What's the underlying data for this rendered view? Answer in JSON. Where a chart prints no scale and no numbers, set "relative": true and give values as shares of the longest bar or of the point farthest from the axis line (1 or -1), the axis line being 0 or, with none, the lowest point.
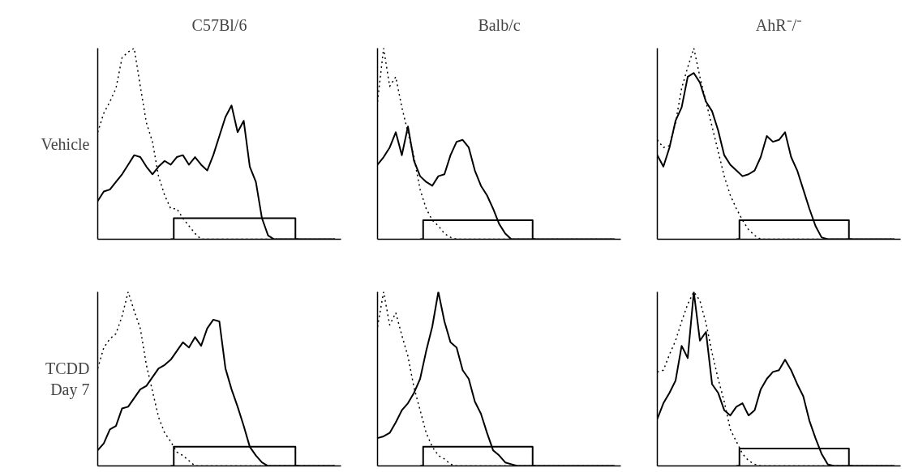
{
  "chart_data": [
    {
      "type": "line",
      "title": "C57Bl/6",
      "ylabel": "Vehicle",
      "relative": true,
      "categories": [
        null,
        null,
        null,
        null,
        null,
        null,
        null,
        null,
        null,
        null,
        null,
        null,
        null,
        null,
        null,
        null,
        null,
        null,
        null,
        null,
        null,
        null,
        null,
        null,
        null,
        null,
        null,
        null,
        null,
        null,
        null,
        null,
        null,
        null,
        null,
        null,
        null,
        null,
        null,
        null
      ],
      "series": [
        {
          "color": "#000000",
          "line_style": "dotted",
          "values": [
            0.56,
            0.66,
            0.72,
            0.79,
            0.95,
            0.98,
            1,
            0.8,
            0.61,
            0.51,
            0.33,
            0.23,
            0.16,
            0.16,
            0.11,
            0.07,
            0.03,
            0,
            0,
            0,
            0,
            0,
            0,
            0,
            0,
            0,
            0,
            0,
            0,
            0,
            0,
            0,
            0,
            0,
            0,
            0,
            0,
            0,
            0,
            0
          ]
        },
        {
          "color": "#000000",
          "line_style": "solid",
          "values": [
            0.2,
            0.25,
            0.26,
            0.3,
            0.34,
            0.39,
            0.44,
            0.43,
            0.38,
            0.34,
            0.38,
            0.41,
            0.39,
            0.43,
            0.44,
            0.39,
            0.43,
            0.39,
            0.36,
            0.44,
            0.54,
            0.64,
            0.7,
            0.56,
            0.62,
            0.38,
            0.3,
            0.11,
            0.02,
            0,
            0,
            0,
            0,
            0,
            0,
            0,
            0,
            0,
            0,
            0
          ]
        },
        {
          "type": "step",
          "color": "#000000",
          "line_style": "solid",
          "values": [
            null,
            null,
            null,
            null,
            null,
            null,
            null,
            null,
            null,
            null,
            null,
            null,
            0,
            0.11,
            0.11,
            0.11,
            0.11,
            0.11,
            0.11,
            0.11,
            0.11,
            0.11,
            0.11,
            0.11,
            0.11,
            0.11,
            0.11,
            0.11,
            0.11,
            0.11,
            0.11,
            0.11,
            0.11,
            0,
            null,
            null,
            null,
            null,
            null,
            null
          ]
        }
      ]
    },
    {
      "type": "line",
      "title": "Balb/c",
      "relative": true,
      "categories": [
        null,
        null,
        null,
        null,
        null,
        null,
        null,
        null,
        null,
        null,
        null,
        null,
        null,
        null,
        null,
        null,
        null,
        null,
        null,
        null,
        null,
        null,
        null,
        null,
        null,
        null,
        null,
        null,
        null,
        null,
        null,
        null,
        null,
        null,
        null,
        null,
        null,
        null,
        null,
        null
      ],
      "series": [
        {
          "color": "#000000",
          "line_style": "dotted",
          "values": [
            0.72,
            1,
            0.8,
            0.85,
            0.69,
            0.56,
            0.43,
            0.26,
            0.16,
            0.1,
            0.07,
            0.03,
            0.01,
            0,
            0,
            0,
            0,
            0,
            0,
            0,
            0,
            0,
            0,
            0,
            0,
            0,
            0,
            0,
            0,
            0,
            0,
            0,
            0,
            0,
            0,
            0,
            0,
            0,
            0,
            0
          ]
        },
        {
          "color": "#000000",
          "line_style": "solid",
          "values": [
            0.39,
            0.43,
            0.48,
            0.56,
            0.44,
            0.59,
            0.41,
            0.33,
            0.3,
            0.28,
            0.33,
            0.34,
            0.44,
            0.51,
            0.52,
            0.48,
            0.36,
            0.28,
            0.23,
            0.16,
            0.08,
            0.03,
            0,
            0,
            0,
            0,
            0,
            0,
            0,
            0,
            0,
            0,
            0,
            0,
            0,
            0,
            0,
            0,
            0,
            0
          ]
        },
        {
          "type": "step",
          "color": "#000000",
          "line_style": "solid",
          "values": [
            null,
            null,
            null,
            null,
            null,
            null,
            null,
            0,
            0.1,
            0.1,
            0.1,
            0.1,
            0.1,
            0.1,
            0.1,
            0.1,
            0.1,
            0.1,
            0.1,
            0.1,
            0.1,
            0.1,
            0.1,
            0.1,
            0.1,
            0.1,
            0,
            null,
            null,
            null,
            null,
            null,
            null,
            null,
            null,
            null,
            null,
            null,
            null,
            null
          ]
        }
      ]
    },
    {
      "type": "line",
      "title": "AhR⁻/⁻",
      "relative": true,
      "categories": [
        null,
        null,
        null,
        null,
        null,
        null,
        null,
        null,
        null,
        null,
        null,
        null,
        null,
        null,
        null,
        null,
        null,
        null,
        null,
        null,
        null,
        null,
        null,
        null,
        null,
        null,
        null,
        null,
        null,
        null,
        null,
        null,
        null,
        null,
        null,
        null,
        null,
        null,
        null,
        null
      ],
      "series": [
        {
          "color": "#000000",
          "line_style": "dotted",
          "values": [
            0.52,
            0.48,
            0.49,
            0.61,
            0.79,
            0.9,
            1,
            0.85,
            0.72,
            0.59,
            0.46,
            0.33,
            0.23,
            0.16,
            0.1,
            0.05,
            0.02,
            0,
            0,
            0,
            0,
            0,
            0,
            0,
            0,
            0,
            0,
            0,
            0,
            0,
            0,
            0,
            0,
            0,
            0,
            0,
            0,
            0,
            0,
            0
          ]
        },
        {
          "color": "#000000",
          "line_style": "solid",
          "values": [
            0.44,
            0.38,
            0.48,
            0.62,
            0.69,
            0.85,
            0.87,
            0.82,
            0.72,
            0.67,
            0.57,
            0.44,
            0.39,
            0.36,
            0.33,
            0.34,
            0.36,
            0.43,
            0.54,
            0.51,
            0.52,
            0.56,
            0.43,
            0.36,
            0.26,
            0.16,
            0.07,
            0.01,
            0,
            0,
            0,
            0,
            0,
            0,
            0,
            0,
            0,
            0,
            0,
            0
          ]
        },
        {
          "type": "step",
          "color": "#000000",
          "line_style": "solid",
          "values": [
            null,
            null,
            null,
            null,
            null,
            null,
            null,
            null,
            null,
            null,
            null,
            null,
            null,
            0,
            0.1,
            0.1,
            0.1,
            0.1,
            0.1,
            0.1,
            0.1,
            0.1,
            0.1,
            0.1,
            0.1,
            0.1,
            0.1,
            0.1,
            0.1,
            0.1,
            0.1,
            0.1,
            0,
            null,
            null,
            null,
            null,
            null,
            null,
            null
          ]
        }
      ]
    },
    {
      "type": "line",
      "ylabel": "TCDD\nDay 7",
      "relative": true,
      "categories": [
        null,
        null,
        null,
        null,
        null,
        null,
        null,
        null,
        null,
        null,
        null,
        null,
        null,
        null,
        null,
        null,
        null,
        null,
        null,
        null,
        null,
        null,
        null,
        null,
        null,
        null,
        null,
        null,
        null,
        null,
        null,
        null,
        null,
        null,
        null,
        null,
        null,
        null,
        null,
        null
      ],
      "series": [
        {
          "color": "#000000",
          "line_style": "dotted",
          "values": [
            0.56,
            0.68,
            0.73,
            0.76,
            0.86,
            1,
            0.89,
            0.79,
            0.58,
            0.43,
            0.28,
            0.19,
            0.14,
            0.08,
            0.06,
            0.03,
            0,
            0,
            0,
            0,
            0,
            0,
            0,
            0,
            0,
            0,
            0,
            0,
            0,
            0,
            0,
            0,
            0,
            0,
            0,
            0,
            0,
            0,
            0,
            0
          ]
        },
        {
          "color": "#000000",
          "line_style": "solid",
          "values": [
            0.09,
            0.13,
            0.21,
            0.23,
            0.33,
            0.34,
            0.39,
            0.44,
            0.46,
            0.51,
            0.56,
            0.58,
            0.61,
            0.66,
            0.71,
            0.68,
            0.74,
            0.69,
            0.79,
            0.84,
            0.83,
            0.56,
            0.44,
            0.34,
            0.23,
            0.11,
            0.06,
            0.02,
            0,
            0,
            0,
            0,
            0,
            0,
            0,
            0,
            0,
            0,
            0,
            0
          ]
        },
        {
          "type": "step",
          "color": "#000000",
          "line_style": "solid",
          "values": [
            null,
            null,
            null,
            null,
            null,
            null,
            null,
            null,
            null,
            null,
            null,
            null,
            0,
            0.11,
            0.11,
            0.11,
            0.11,
            0.11,
            0.11,
            0.11,
            0.11,
            0.11,
            0.11,
            0.11,
            0.11,
            0.11,
            0.11,
            0.11,
            0.11,
            0.11,
            0.11,
            0.11,
            0.11,
            0,
            null,
            null,
            null,
            null,
            null,
            null
          ]
        }
      ]
    },
    {
      "type": "line",
      "relative": true,
      "categories": [
        null,
        null,
        null,
        null,
        null,
        null,
        null,
        null,
        null,
        null,
        null,
        null,
        null,
        null,
        null,
        null,
        null,
        null,
        null,
        null,
        null,
        null,
        null,
        null,
        null,
        null,
        null,
        null,
        null,
        null,
        null,
        null,
        null,
        null,
        null,
        null,
        null,
        null,
        null,
        null
      ],
      "series": [
        {
          "color": "#000000",
          "line_style": "dotted",
          "values": [
            0.8,
            1,
            0.81,
            0.88,
            0.75,
            0.63,
            0.45,
            0.32,
            0.19,
            0.11,
            0.06,
            0.04,
            0.01,
            0,
            0,
            0,
            0,
            0,
            0,
            0,
            0,
            0,
            0,
            0,
            0,
            0,
            0,
            0,
            0,
            0,
            0,
            0,
            0,
            0,
            0,
            0,
            0,
            0,
            0,
            0
          ]
        },
        {
          "color": "#000000",
          "line_style": "solid",
          "values": [
            0.16,
            0.17,
            0.19,
            0.25,
            0.32,
            0.36,
            0.42,
            0.5,
            0.66,
            0.8,
            1,
            0.83,
            0.71,
            0.68,
            0.55,
            0.5,
            0.37,
            0.3,
            0.19,
            0.09,
            0.06,
            0.02,
            0.01,
            0,
            0,
            0,
            0,
            0,
            0,
            0,
            0,
            0,
            0,
            0,
            0,
            0,
            0,
            0,
            0,
            0
          ]
        },
        {
          "type": "step",
          "color": "#000000",
          "line_style": "solid",
          "values": [
            null,
            null,
            null,
            null,
            null,
            null,
            null,
            0,
            0.11,
            0.11,
            0.11,
            0.11,
            0.11,
            0.11,
            0.11,
            0.11,
            0.11,
            0.11,
            0.11,
            0.11,
            0.11,
            0.11,
            0.11,
            0.11,
            0.11,
            0.11,
            0,
            null,
            null,
            null,
            null,
            null,
            null,
            null,
            null,
            null,
            null,
            null,
            null,
            null
          ]
        }
      ]
    },
    {
      "type": "line",
      "relative": true,
      "categories": [
        null,
        null,
        null,
        null,
        null,
        null,
        null,
        null,
        null,
        null,
        null,
        null,
        null,
        null,
        null,
        null,
        null,
        null,
        null,
        null,
        null,
        null,
        null,
        null,
        null,
        null,
        null,
        null,
        null,
        null,
        null,
        null,
        null,
        null,
        null,
        null,
        null,
        null,
        null,
        null
      ],
      "series": [
        {
          "color": "#000000",
          "line_style": "dotted",
          "values": [
            0.54,
            0.55,
            0.64,
            0.72,
            0.83,
            0.93,
            1,
            0.95,
            0.82,
            0.65,
            0.5,
            0.37,
            0.21,
            0.14,
            0.07,
            0.03,
            0.01,
            0,
            0,
            0,
            0,
            0,
            0,
            0,
            0,
            0,
            0,
            0,
            0,
            0,
            0,
            0,
            0,
            0,
            0,
            0,
            0,
            0,
            0,
            0
          ]
        },
        {
          "color": "#000000",
          "line_style": "solid",
          "values": [
            0.27,
            0.36,
            0.42,
            0.49,
            0.69,
            0.62,
            1,
            0.72,
            0.77,
            0.47,
            0.42,
            0.32,
            0.29,
            0.34,
            0.36,
            0.29,
            0.32,
            0.44,
            0.5,
            0.54,
            0.55,
            0.61,
            0.55,
            0.47,
            0.4,
            0.26,
            0.16,
            0.07,
            0.01,
            0,
            0,
            0,
            0,
            0,
            0,
            0,
            0,
            0,
            0,
            0
          ]
        },
        {
          "type": "step",
          "color": "#000000",
          "line_style": "solid",
          "values": [
            null,
            null,
            null,
            null,
            null,
            null,
            null,
            null,
            null,
            null,
            null,
            null,
            null,
            0,
            0.1,
            0.1,
            0.1,
            0.1,
            0.1,
            0.1,
            0.1,
            0.1,
            0.1,
            0.1,
            0.1,
            0.1,
            0.1,
            0.1,
            0.1,
            0.1,
            0.1,
            0.1,
            0,
            null,
            null,
            null,
            null,
            null,
            null,
            null
          ]
        }
      ]
    }
  ]
}
